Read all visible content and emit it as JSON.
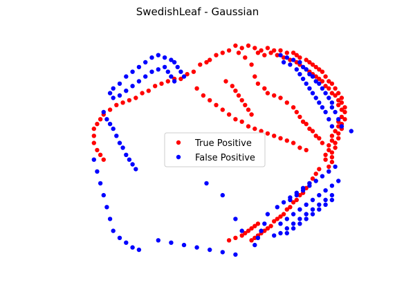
{
  "chart_data": {
    "type": "scatter",
    "title": "SwedishLeaf - Gaussian",
    "xlabel": "",
    "ylabel": "",
    "axes": "off",
    "grid": false,
    "legend_placement": "center",
    "xlim": [
      0,
      100
    ],
    "ylim": [
      0,
      100
    ],
    "series": [
      {
        "name": "True Positive",
        "color": "#ff0000",
        "points": [
          [
            62,
            92
          ],
          [
            64,
            91
          ],
          [
            66,
            92
          ],
          [
            68,
            91
          ],
          [
            70,
            91
          ],
          [
            72,
            90
          ],
          [
            74,
            90
          ],
          [
            75,
            89
          ],
          [
            76,
            88
          ],
          [
            78,
            87
          ],
          [
            79,
            86
          ],
          [
            80,
            85
          ],
          [
            81,
            84
          ],
          [
            82,
            83
          ],
          [
            83,
            82
          ],
          [
            84,
            80
          ],
          [
            85,
            78
          ],
          [
            86,
            77
          ],
          [
            87,
            75
          ],
          [
            88,
            73
          ],
          [
            89,
            71
          ],
          [
            89,
            69
          ],
          [
            90,
            67
          ],
          [
            90,
            65
          ],
          [
            90,
            62
          ],
          [
            89,
            60
          ],
          [
            89,
            58
          ],
          [
            88,
            56
          ],
          [
            88,
            54
          ],
          [
            87,
            52
          ],
          [
            87,
            50
          ],
          [
            86,
            48
          ],
          [
            86,
            46
          ],
          [
            86,
            44
          ],
          [
            85,
            42
          ],
          [
            85,
            40
          ],
          [
            63,
            90
          ],
          [
            65,
            89
          ],
          [
            67,
            90
          ],
          [
            69,
            89
          ],
          [
            71,
            88
          ],
          [
            73,
            87
          ],
          [
            75,
            86
          ],
          [
            76,
            85
          ],
          [
            77,
            84
          ],
          [
            78,
            83
          ],
          [
            79,
            82
          ],
          [
            80,
            81
          ],
          [
            81,
            80
          ],
          [
            82,
            79
          ],
          [
            83,
            78
          ],
          [
            84,
            76
          ],
          [
            85,
            75
          ],
          [
            86,
            73
          ],
          [
            87,
            72
          ],
          [
            88,
            70
          ],
          [
            88,
            68
          ],
          [
            89,
            66
          ],
          [
            89,
            63
          ],
          [
            88,
            61
          ],
          [
            88,
            59
          ],
          [
            87,
            57
          ],
          [
            86,
            55
          ],
          [
            86,
            53
          ],
          [
            85,
            51
          ],
          [
            85,
            49
          ],
          [
            84,
            47
          ],
          [
            84,
            45
          ],
          [
            60,
            93
          ],
          [
            58,
            92
          ],
          [
            56,
            93
          ],
          [
            54,
            91
          ],
          [
            52,
            90
          ],
          [
            50,
            89
          ],
          [
            48,
            87
          ],
          [
            47,
            86
          ],
          [
            45,
            85
          ],
          [
            43,
            82
          ],
          [
            41,
            81
          ],
          [
            39,
            79
          ],
          [
            37,
            79
          ],
          [
            35,
            78
          ],
          [
            33,
            77
          ],
          [
            31,
            76
          ],
          [
            29,
            74
          ],
          [
            27,
            73
          ],
          [
            25,
            71
          ],
          [
            23,
            70
          ],
          [
            21,
            69
          ],
          [
            19,
            68
          ],
          [
            17,
            66
          ],
          [
            15,
            64
          ],
          [
            14,
            62
          ],
          [
            13,
            60
          ],
          [
            12,
            58
          ],
          [
            12,
            55
          ],
          [
            12,
            52
          ],
          [
            13,
            49
          ],
          [
            14,
            47
          ],
          [
            15,
            45
          ],
          [
            57,
            90
          ],
          [
            59,
            88
          ],
          [
            61,
            85
          ],
          [
            62,
            80
          ],
          [
            63,
            77
          ],
          [
            65,
            75
          ],
          [
            66,
            73
          ],
          [
            68,
            72
          ],
          [
            70,
            71
          ],
          [
            72,
            69
          ],
          [
            74,
            67
          ],
          [
            75,
            65
          ],
          [
            76,
            63
          ],
          [
            77,
            61
          ],
          [
            78,
            60
          ],
          [
            79,
            58
          ],
          [
            80,
            57
          ],
          [
            81,
            55
          ],
          [
            82,
            54
          ],
          [
            83,
            52
          ],
          [
            44,
            75
          ],
          [
            46,
            72
          ],
          [
            48,
            70
          ],
          [
            50,
            68
          ],
          [
            52,
            66
          ],
          [
            54,
            64
          ],
          [
            56,
            62
          ],
          [
            58,
            61
          ],
          [
            60,
            59
          ],
          [
            62,
            58
          ],
          [
            64,
            57
          ],
          [
            66,
            56
          ],
          [
            68,
            55
          ],
          [
            70,
            54
          ],
          [
            72,
            53
          ],
          [
            74,
            52
          ],
          [
            76,
            50
          ],
          [
            78,
            49
          ],
          [
            82,
            41
          ],
          [
            81,
            39
          ],
          [
            80,
            37
          ],
          [
            79,
            35
          ],
          [
            78,
            33
          ],
          [
            77,
            31
          ],
          [
            76,
            30
          ],
          [
            75,
            28
          ],
          [
            74,
            27
          ],
          [
            73,
            25
          ],
          [
            72,
            24
          ],
          [
            71,
            22
          ],
          [
            70,
            21
          ],
          [
            69,
            20
          ],
          [
            68,
            19
          ],
          [
            67,
            17
          ],
          [
            66,
            16
          ],
          [
            65,
            15
          ],
          [
            64,
            14
          ],
          [
            63,
            13
          ],
          [
            62,
            12
          ],
          [
            61,
            11
          ],
          [
            54,
            11
          ],
          [
            56,
            12
          ],
          [
            58,
            13
          ],
          [
            59,
            14
          ],
          [
            60,
            15
          ],
          [
            61,
            16
          ],
          [
            62,
            17
          ],
          [
            63,
            18
          ],
          [
            53,
            78
          ],
          [
            55,
            76
          ],
          [
            56,
            74
          ],
          [
            57,
            72
          ],
          [
            58,
            70
          ],
          [
            59,
            68
          ],
          [
            60,
            66
          ],
          [
            61,
            64
          ]
        ]
      },
      {
        "name": "False Positive",
        "color": "#0000ff",
        "points": [
          [
            70,
            89
          ],
          [
            72,
            88
          ],
          [
            74,
            87
          ],
          [
            76,
            86
          ],
          [
            77,
            84
          ],
          [
            78,
            83
          ],
          [
            79,
            81
          ],
          [
            80,
            80
          ],
          [
            81,
            78
          ],
          [
            82,
            77
          ],
          [
            83,
            75
          ],
          [
            84,
            73
          ],
          [
            85,
            71
          ],
          [
            86,
            69
          ],
          [
            86,
            67
          ],
          [
            87,
            65
          ],
          [
            88,
            62
          ],
          [
            89,
            59
          ],
          [
            92,
            57
          ],
          [
            71,
            86
          ],
          [
            73,
            85
          ],
          [
            75,
            83
          ],
          [
            76,
            81
          ],
          [
            77,
            79
          ],
          [
            78,
            77
          ],
          [
            79,
            75
          ],
          [
            80,
            73
          ],
          [
            81,
            71
          ],
          [
            82,
            69
          ],
          [
            83,
            67
          ],
          [
            84,
            65
          ],
          [
            85,
            62
          ],
          [
            86,
            59
          ],
          [
            17,
            73
          ],
          [
            18,
            75
          ],
          [
            20,
            77
          ],
          [
            22,
            80
          ],
          [
            24,
            82
          ],
          [
            26,
            84
          ],
          [
            28,
            86
          ],
          [
            30,
            88
          ],
          [
            32,
            89
          ],
          [
            34,
            88
          ],
          [
            36,
            87
          ],
          [
            37,
            86
          ],
          [
            38,
            84
          ],
          [
            39,
            82
          ],
          [
            40,
            80
          ],
          [
            18,
            71
          ],
          [
            20,
            72
          ],
          [
            22,
            74
          ],
          [
            24,
            76
          ],
          [
            26,
            78
          ],
          [
            28,
            80
          ],
          [
            30,
            82
          ],
          [
            32,
            83
          ],
          [
            34,
            84
          ],
          [
            35,
            82
          ],
          [
            36,
            80
          ],
          [
            37,
            78
          ],
          [
            15,
            65
          ],
          [
            16,
            62
          ],
          [
            17,
            60
          ],
          [
            18,
            58
          ],
          [
            19,
            55
          ],
          [
            20,
            52
          ],
          [
            21,
            50
          ],
          [
            22,
            47
          ],
          [
            23,
            45
          ],
          [
            24,
            43
          ],
          [
            25,
            41
          ],
          [
            12,
            45
          ],
          [
            13,
            40
          ],
          [
            14,
            35
          ],
          [
            15,
            30
          ],
          [
            16,
            25
          ],
          [
            17,
            20
          ],
          [
            18,
            15
          ],
          [
            20,
            12
          ],
          [
            22,
            10
          ],
          [
            24,
            8
          ],
          [
            26,
            7
          ],
          [
            32,
            11
          ],
          [
            36,
            10
          ],
          [
            40,
            9
          ],
          [
            44,
            8
          ],
          [
            48,
            7
          ],
          [
            52,
            6
          ],
          [
            56,
            5
          ],
          [
            68,
            13
          ],
          [
            70,
            14
          ],
          [
            72,
            16
          ],
          [
            74,
            18
          ],
          [
            76,
            20
          ],
          [
            78,
            22
          ],
          [
            80,
            24
          ],
          [
            82,
            26
          ],
          [
            84,
            28
          ],
          [
            86,
            30
          ],
          [
            70,
            18
          ],
          [
            72,
            20
          ],
          [
            74,
            22
          ],
          [
            76,
            24
          ],
          [
            78,
            26
          ],
          [
            80,
            28
          ],
          [
            82,
            30
          ],
          [
            84,
            32
          ],
          [
            86,
            34
          ],
          [
            88,
            36
          ],
          [
            72,
            14
          ],
          [
            74,
            16
          ],
          [
            76,
            18
          ],
          [
            78,
            20
          ],
          [
            80,
            22
          ],
          [
            82,
            24
          ],
          [
            84,
            26
          ],
          [
            86,
            28
          ],
          [
            73,
            28
          ],
          [
            75,
            30
          ],
          [
            77,
            32
          ],
          [
            79,
            34
          ],
          [
            81,
            36
          ],
          [
            83,
            38
          ],
          [
            85,
            40
          ],
          [
            87,
            42
          ],
          [
            69,
            25
          ],
          [
            71,
            27
          ],
          [
            73,
            29
          ],
          [
            75,
            31
          ],
          [
            77,
            33
          ],
          [
            79,
            35
          ],
          [
            66,
            22
          ],
          [
            65,
            18
          ],
          [
            64,
            15
          ],
          [
            63,
            12
          ],
          [
            62,
            9
          ],
          [
            47,
            35
          ],
          [
            52,
            30
          ],
          [
            56,
            20
          ],
          [
            58,
            15
          ]
        ]
      }
    ]
  }
}
